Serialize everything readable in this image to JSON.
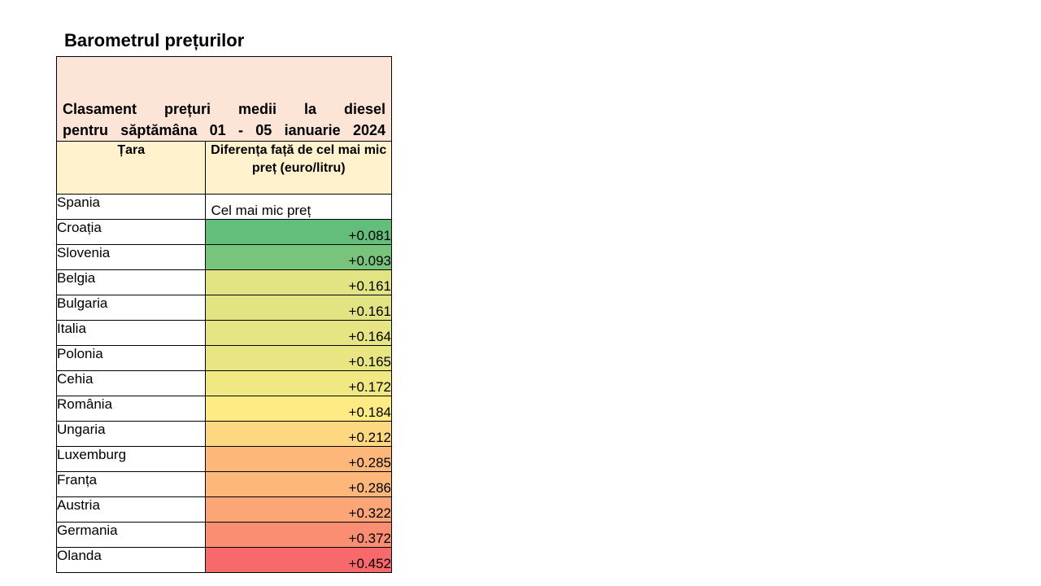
{
  "title": "Barometrul prețurilor",
  "table": {
    "header_line1": "Clasament prețuri medii la diesel",
    "header_line2": "pentru săptămâna 01 - 05 ianuarie 2024",
    "col_country": "Țara",
    "col_diff": "Diferența față de cel mai mic preț (euro/litru)",
    "rows": [
      {
        "country": "Spania",
        "value": "Cel mai mic preț",
        "color": "#ffffff"
      },
      {
        "country": "Croația",
        "value": "+0.081",
        "color": "#63be7b"
      },
      {
        "country": "Slovenia",
        "value": "+0.093",
        "color": "#78c47c"
      },
      {
        "country": "Belgia",
        "value": "+0.161",
        "color": "#e2e383"
      },
      {
        "country": "Bulgaria",
        "value": "+0.161",
        "color": "#e2e383"
      },
      {
        "country": "Italia",
        "value": "+0.164",
        "color": "#e6e483"
      },
      {
        "country": "Polonia",
        "value": "+0.165",
        "color": "#e8e583"
      },
      {
        "country": "Cehia",
        "value": "+0.172",
        "color": "#f1e783"
      },
      {
        "country": "România",
        "value": "+0.184",
        "color": "#ffeb84"
      },
      {
        "country": "Ungaria",
        "value": "+0.212",
        "color": "#fed880"
      },
      {
        "country": "Luxemburg",
        "value": "+0.285",
        "color": "#fdb77a"
      },
      {
        "country": "Franța",
        "value": "+0.286",
        "color": "#fdb77a"
      },
      {
        "country": "Austria",
        "value": "+0.322",
        "color": "#fca576"
      },
      {
        "country": "Germania",
        "value": "+0.372",
        "color": "#fa8e72"
      },
      {
        "country": "Olanda",
        "value": "+0.452",
        "color": "#f8696b"
      }
    ]
  }
}
